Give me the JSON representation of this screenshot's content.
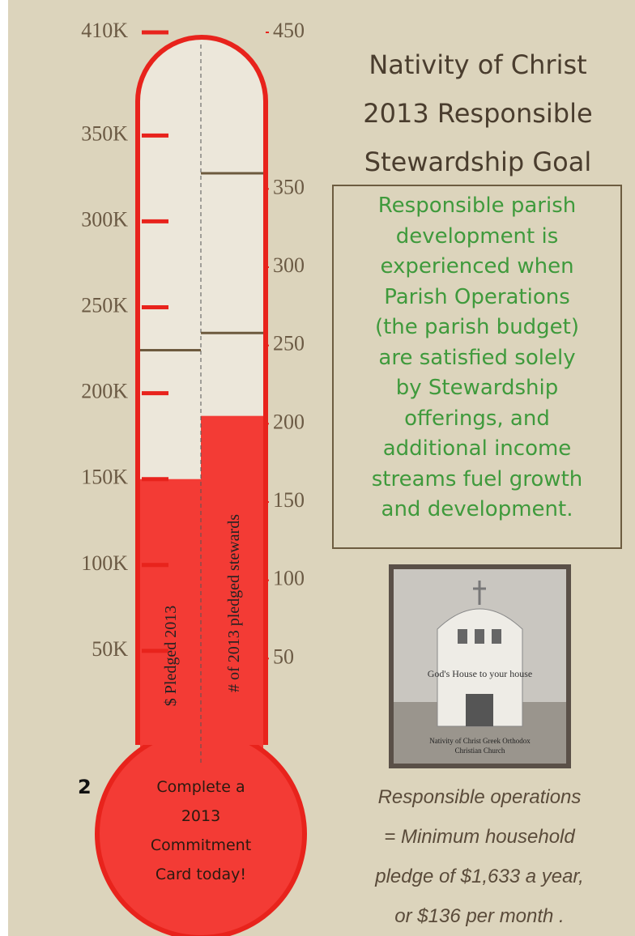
{
  "chart_data": {
    "type": "thermometer",
    "title_lines": [
      "Nativity of Christ",
      "2013 Responsible",
      "Stewardship Goal"
    ],
    "series": [
      {
        "name": "$ Pledged 2013",
        "color": "#f33b35",
        "values": [
          150000
        ]
      },
      {
        "name": "# of 2013 pledged stewards",
        "color": "#f33b35",
        "values": [
          205
        ],
        "axis": "y2"
      }
    ],
    "goal_lines": {
      "y": [
        225000
      ],
      "y2": [
        258,
        360
      ]
    },
    "ylim": [
      0,
      410000
    ],
    "yticks": [
      {
        "value": 50000,
        "label": "50K"
      },
      {
        "value": 100000,
        "label": "100K"
      },
      {
        "value": 150000,
        "label": "150K"
      },
      {
        "value": 200000,
        "label": "200K"
      },
      {
        "value": 250000,
        "label": "250K"
      },
      {
        "value": 300000,
        "label": "300K"
      },
      {
        "value": 350000,
        "label": "350K"
      },
      {
        "value": 410000,
        "label": "410K"
      }
    ],
    "y2lim": [
      0,
      450
    ],
    "y2ticks": [
      50,
      100,
      150,
      200,
      250,
      300,
      350,
      450
    ],
    "bulb_text": [
      "Complete a",
      "2013",
      "Commitment",
      "Card today!"
    ]
  },
  "sidebar": {
    "description_lines": [
      "Responsible parish",
      "development is",
      "experienced when",
      "Parish Operations",
      "(the parish budget)",
      "are satisfied solely",
      "by Stewardship",
      "offerings, and",
      "additional income",
      "streams fuel growth",
      "and development."
    ],
    "image_caption": "God's House to your house",
    "image_subcaption_lines": [
      "Nativity of Christ Greek Orthodox",
      "Christian Church"
    ],
    "note_lines": [
      "Responsible operations",
      "= Minimum household",
      "pledge of $1,633 a year,",
      "or $136 per month ."
    ]
  },
  "margin_mark": "2"
}
